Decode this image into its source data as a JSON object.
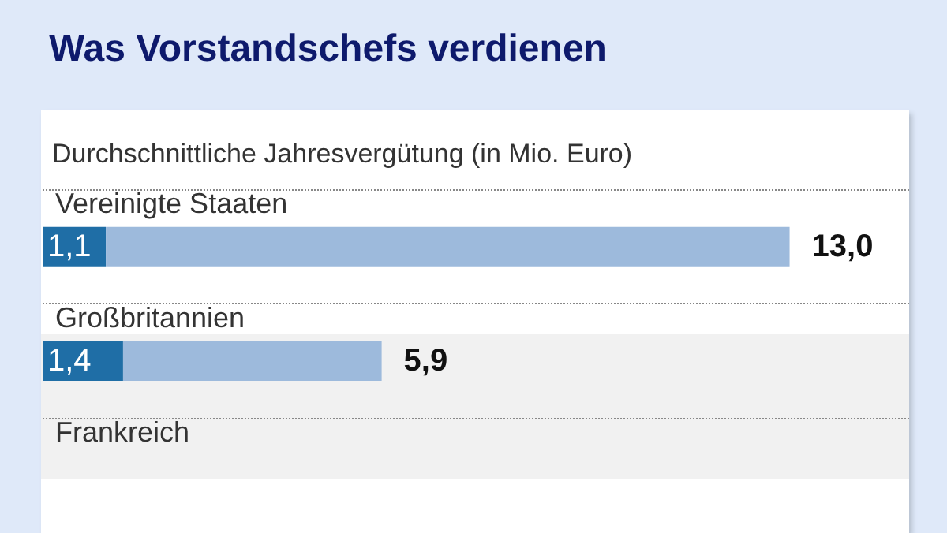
{
  "chart_data": {
    "type": "bar",
    "orientation": "horizontal",
    "stacked": true,
    "title": "Was Vorstandschefs verdienen",
    "subtitle": "Durchschnittliche Jahresvergütung (in Mio. Euro)",
    "categories": [
      "Vereinigte Staaten",
      "Großbritannien",
      "Frankreich"
    ],
    "series": [
      {
        "color": "#1f6ea6",
        "values": [
          1.1,
          1.4,
          null
        ],
        "value_labels": [
          "1,1",
          "1,4",
          null
        ]
      },
      {
        "color": "#9dbadc",
        "values": [
          11.9,
          4.5,
          null
        ]
      }
    ],
    "totals": [
      "13,0",
      "5,9",
      null
    ],
    "grid": false
  }
}
